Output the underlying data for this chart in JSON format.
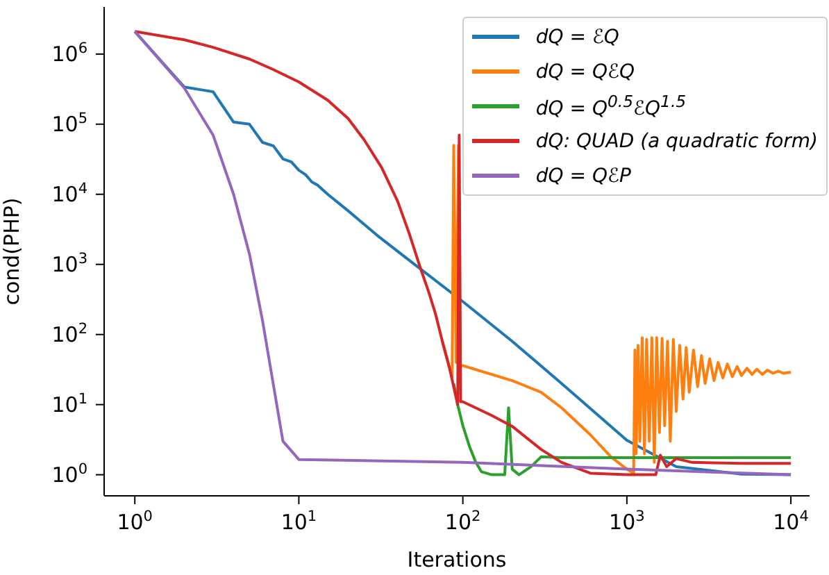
{
  "chart_data": {
    "type": "line",
    "xlabel": "Iterations",
    "ylabel": "cond(PHP)",
    "log": "xy",
    "legend": "top right",
    "xlim": [
      0.65,
      13000
    ],
    "ylim": [
      0.5,
      4700000
    ],
    "xticks": [
      {
        "value": 1,
        "label": "10$^{0}$"
      },
      {
        "value": 10,
        "label": "10$^{1}$"
      },
      {
        "value": 100,
        "label": "10$^{2}$"
      },
      {
        "value": 1000,
        "label": "10$^{3}$"
      },
      {
        "value": 10000,
        "label": "10$^{4}$"
      }
    ],
    "yticks": [
      {
        "value": 1,
        "label": "10$^{0}$"
      },
      {
        "value": 10,
        "label": "10$^{1}$"
      },
      {
        "value": 100,
        "label": "10$^{2}$"
      },
      {
        "value": 1000,
        "label": "10$^{3}$"
      },
      {
        "value": 10000,
        "label": "10$^{4}$"
      },
      {
        "value": 100000,
        "label": "10$^{5}$"
      },
      {
        "value": 1000000,
        "label": "10$^{6}$"
      }
    ],
    "series": [
      {
        "name": "dQ = ℰQ",
        "color": "#1f77b4",
        "x": [
          1,
          2,
          3,
          4,
          5,
          6,
          7,
          8,
          9,
          10,
          11,
          12,
          13,
          15,
          20,
          30,
          47,
          100,
          200,
          400,
          1000,
          2000,
          5000,
          10000
        ],
        "values": [
          2100000,
          340000,
          290000,
          107000,
          100000,
          55000,
          49000,
          32000,
          29000,
          22000,
          19000,
          15000,
          13500,
          10000,
          5800,
          2600,
          1150,
          295,
          80,
          20,
          3.1,
          1.3,
          1.02,
          1.0
        ]
      },
      {
        "name": "dQ = QℰQ",
        "color": "#ff7f0e",
        "x": [
          75,
          83,
          86,
          88,
          91,
          94,
          96,
          100,
          200,
          300,
          400,
          600,
          800,
          1000,
          1100,
          1120,
          1140,
          1170,
          1200,
          1240,
          1280,
          1320,
          1370,
          1420,
          1470,
          1520,
          1580,
          1640,
          1700,
          1770,
          1840,
          1920,
          2000,
          2100,
          2200,
          2300,
          2400,
          2550,
          2700,
          2850,
          3000,
          3200,
          3400,
          3600,
          3850,
          4100,
          4400,
          4700,
          5000,
          5400,
          5800,
          6200,
          6700,
          7200,
          7800,
          8400,
          9000,
          10000
        ],
        "values": [
          80,
          33,
          25,
          50000,
          40,
          50000,
          36,
          36,
          22,
          15,
          9,
          3.7,
          1.8,
          1.2,
          1.05,
          60,
          2,
          70,
          3,
          90,
          2,
          85,
          3,
          90,
          1.5,
          90,
          4,
          88,
          5,
          80,
          3,
          85,
          8,
          70,
          12,
          65,
          15,
          60,
          18,
          50,
          20,
          45,
          22,
          40,
          24,
          38,
          25,
          35,
          26,
          33,
          27,
          32,
          27,
          31,
          28,
          30,
          28,
          29
        ]
      },
      {
        "name": "dQ = Q$^{0.5}$ℰQ$^{1.5}$",
        "color": "#2ca02c",
        "x": [
          88,
          93,
          100,
          110,
          120,
          130,
          150,
          180,
          190,
          200,
          220,
          260,
          300,
          400,
          10000
        ],
        "values": [
          20,
          10,
          5,
          2.5,
          1.5,
          1.1,
          1.0,
          1.0,
          9,
          1.2,
          1.0,
          1.3,
          1.8,
          1.75,
          1.75
        ]
      },
      {
        "name": "dQ: QUAD (a quadratic form)",
        "color": "#d62728",
        "x": [
          1,
          2,
          3,
          5,
          7,
          10,
          15,
          20,
          25,
          32,
          40,
          47,
          55,
          62,
          68,
          75,
          83,
          90,
          93,
          95,
          97,
          100,
          150,
          200,
          300,
          400,
          600,
          1000,
          1500,
          1600,
          1750,
          2000,
          2500,
          5000,
          10000
        ],
        "values": [
          2100000,
          1600000,
          1250000,
          850000,
          600000,
          400000,
          220000,
          120000,
          60000,
          24000,
          8000,
          2800,
          900,
          400,
          200,
          80,
          33,
          14,
          10,
          70000,
          11,
          11,
          7,
          4.9,
          2.3,
          1.5,
          1.05,
          1.0,
          1.0,
          1.9,
          1.3,
          1.7,
          1.5,
          1.45,
          1.45
        ]
      },
      {
        "name": "dQ = QℰP",
        "color": "#9467bd",
        "x": [
          1,
          2,
          3,
          4,
          5,
          6,
          7,
          8,
          10,
          100,
          1000,
          10000
        ],
        "values": [
          2100000,
          330000,
          70000,
          10000,
          1400,
          160,
          19,
          3,
          1.65,
          1.5,
          1.2,
          1.0
        ]
      }
    ]
  }
}
